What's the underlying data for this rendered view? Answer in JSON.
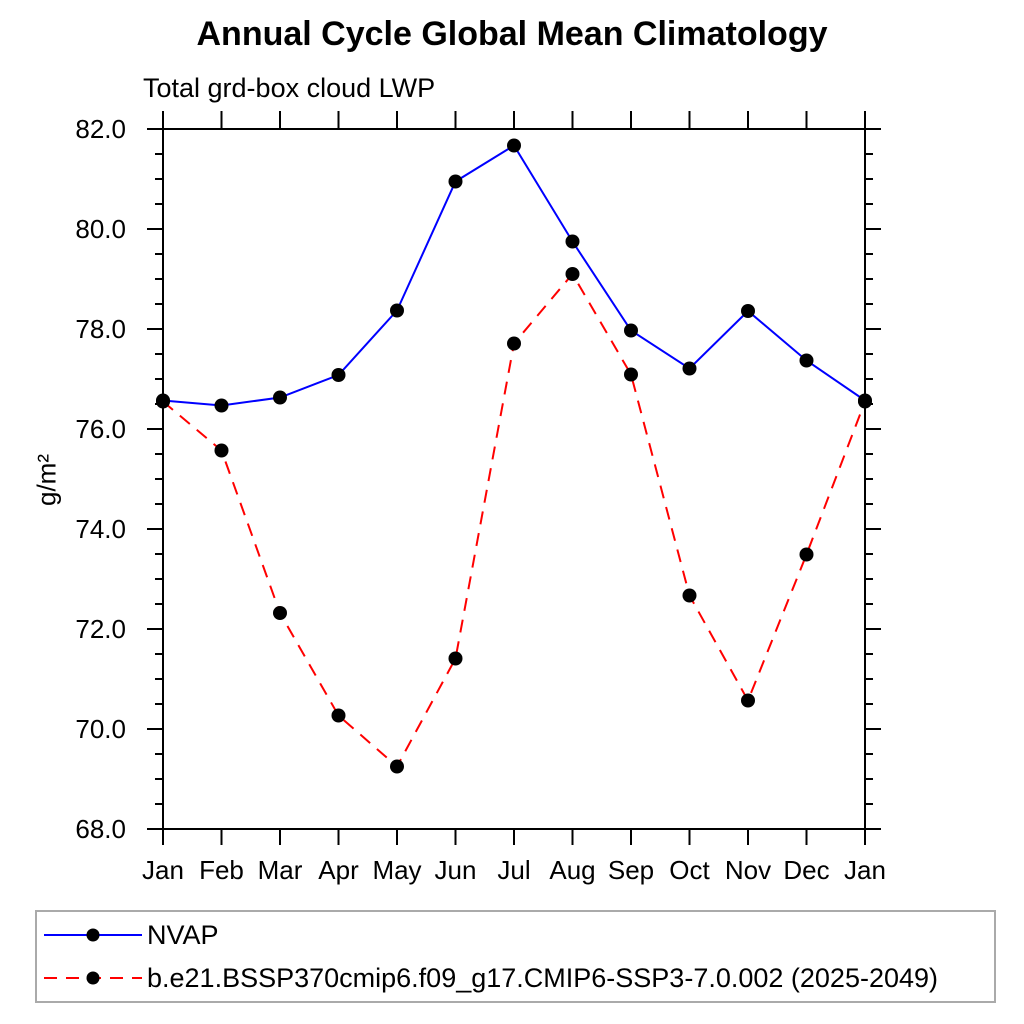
{
  "window": {
    "background": "#ffffff"
  },
  "chart_data": {
    "type": "line",
    "title": "Annual Cycle Global Mean Climatology",
    "subtitle": "Total grd-box cloud LWP",
    "xlabel": "",
    "ylabel": "g/m²",
    "categories": [
      "Jan",
      "Feb",
      "Mar",
      "Apr",
      "May",
      "Jun",
      "Jul",
      "Aug",
      "Sep",
      "Oct",
      "Nov",
      "Dec",
      "Jan"
    ],
    "ylim": [
      68.0,
      82.0
    ],
    "yticks_major": [
      68.0,
      70.0,
      72.0,
      74.0,
      76.0,
      78.0,
      80.0,
      82.0
    ],
    "ytick_labels": [
      "68.0",
      "70.0",
      "72.0",
      "74.0",
      "76.0",
      "78.0",
      "80.0",
      "82.0"
    ],
    "ytick_minor_step": 0.5,
    "grid": false,
    "axis_color": "#000000",
    "text_color": "#000000",
    "marker": {
      "shape": "circle",
      "color": "#000000",
      "radius": 7
    },
    "legend": {
      "position": "bottom-left",
      "border_color": "#aaaaaa",
      "background": "#ffffff"
    },
    "series": [
      {
        "name": "NVAP",
        "color": "#0000ff",
        "line_style": "solid",
        "values": [
          76.57,
          76.47,
          76.63,
          77.08,
          78.37,
          80.95,
          81.67,
          79.75,
          77.97,
          77.21,
          78.36,
          77.37,
          76.57
        ]
      },
      {
        "name": "b.e21.BSSP370cmip6.f09_g17.CMIP6-SSP3-7.0.002 (2025-2049)",
        "color": "#ff0000",
        "line_style": "dashed",
        "values": [
          76.55,
          75.57,
          72.32,
          70.27,
          69.25,
          71.41,
          77.71,
          79.1,
          77.09,
          72.67,
          70.57,
          73.49,
          76.55
        ]
      }
    ]
  }
}
